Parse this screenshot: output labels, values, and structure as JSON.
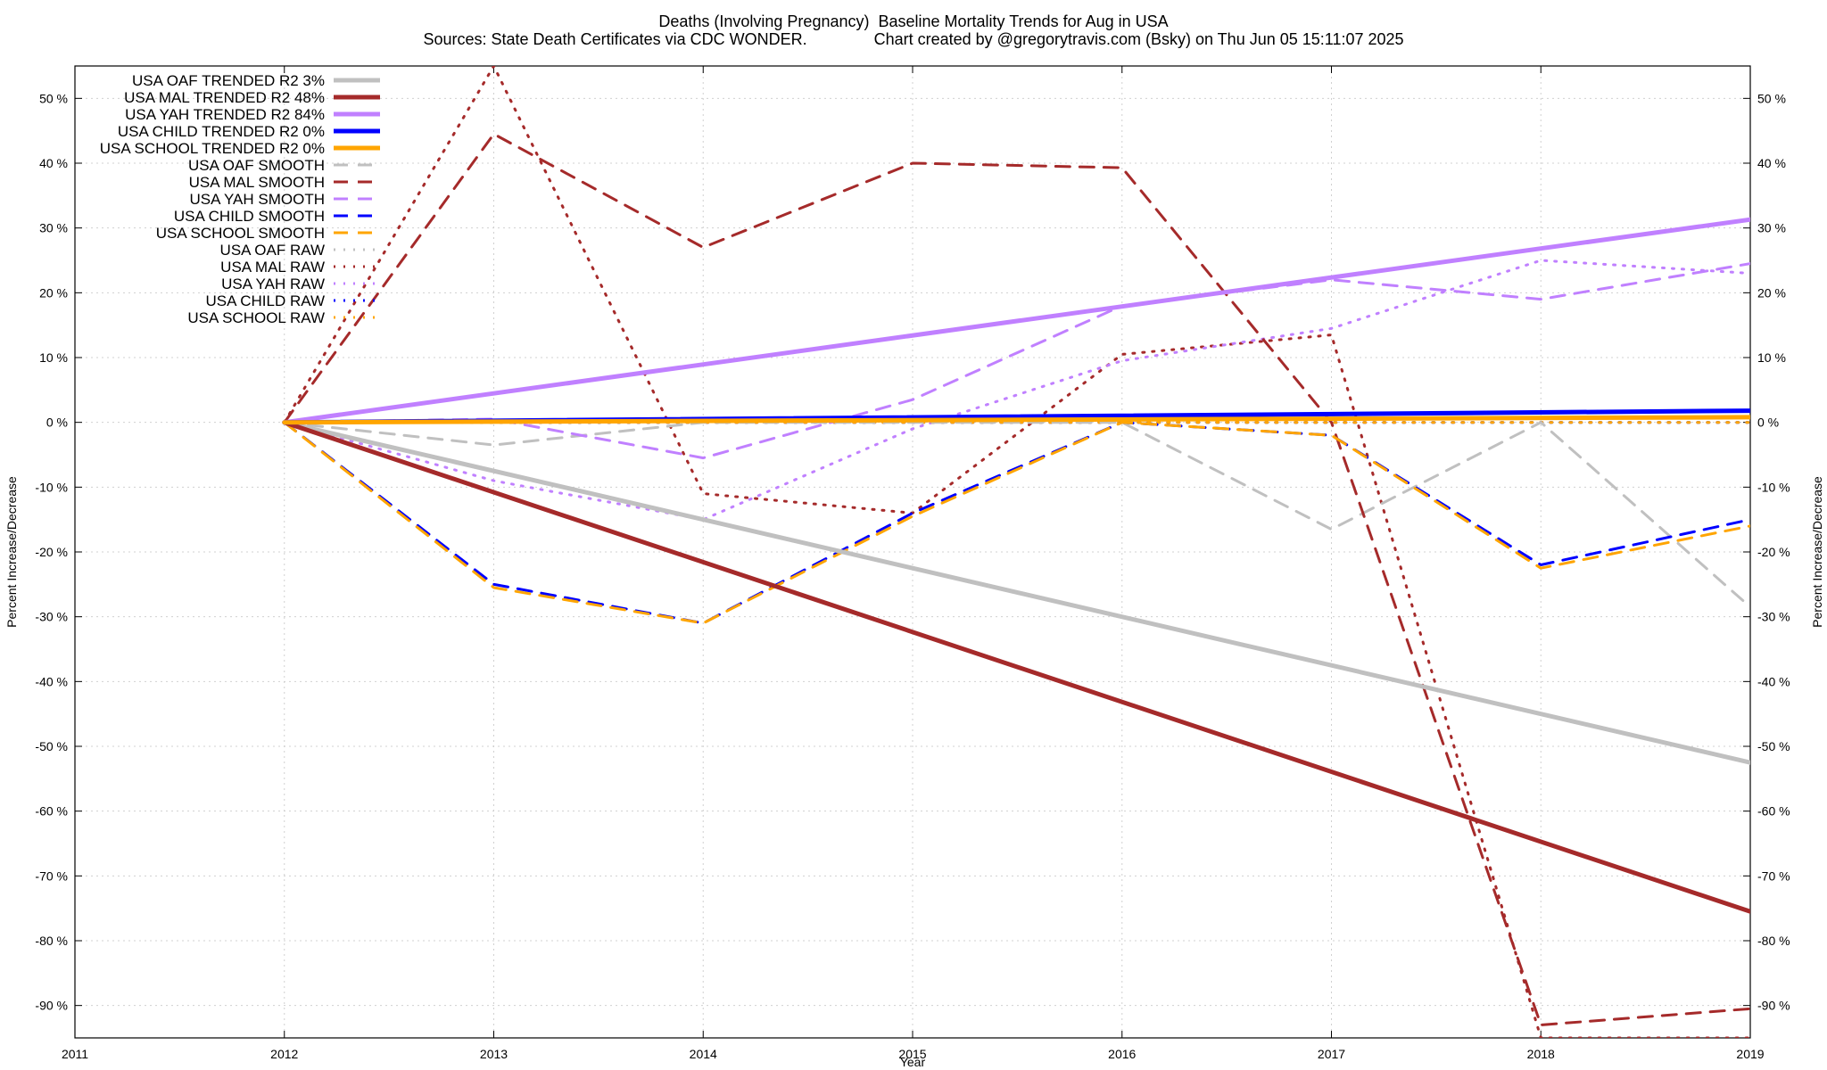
{
  "title": {
    "line1": "Deaths (Involving Pregnancy)  Baseline Mortality Trends for Aug in USA",
    "line2": "Sources: State Death Certificates via CDC WONDER.               Chart created by @gregorytravis.com (Bsky) on Thu Jun 05 15:11:07 2025"
  },
  "chart_data": {
    "type": "line",
    "xlabel": "Year",
    "ylabel": "Percent Increase/Decrease",
    "xlim": [
      2011,
      2019
    ],
    "ylim": [
      -95,
      55
    ],
    "x_ticks": [
      "2011",
      "2012",
      "2013",
      "2014",
      "2015",
      "2016",
      "2017",
      "2018",
      "2019"
    ],
    "y_ticks": [
      "50 %",
      "40 %",
      "30 %",
      "20 %",
      "10 %",
      "0 %",
      "-10 %",
      "-20 %",
      "-30 %",
      "-40 %",
      "-50 %",
      "-60 %",
      "-70 %",
      "-80 %",
      "-90 %"
    ],
    "y_tick_values": [
      50,
      40,
      30,
      20,
      10,
      0,
      -10,
      -20,
      -30,
      -40,
      -50,
      -60,
      -70,
      -80,
      -90
    ],
    "grid": true,
    "legend_position": "top-left",
    "series": [
      {
        "name": "USA OAF TRENDED R2   3%",
        "style": "solid",
        "color": "#c0c0c0",
        "x": [
          2012,
          2019
        ],
        "y": [
          0,
          -52.5
        ]
      },
      {
        "name": "USA MAL TRENDED R2  48%",
        "style": "solid",
        "color": "#a52a2a",
        "x": [
          2012,
          2019
        ],
        "y": [
          0,
          -75.5
        ]
      },
      {
        "name": "USA YAH TRENDED R2  84%",
        "style": "solid",
        "color": "#c080ff",
        "x": [
          2012,
          2019
        ],
        "y": [
          0,
          31.3
        ]
      },
      {
        "name": "USA CHILD TRENDED R2   0%",
        "style": "solid",
        "color": "#0000ff",
        "x": [
          2012,
          2019
        ],
        "y": [
          0,
          1.8
        ]
      },
      {
        "name": "USA SCHOOL TRENDED R2   0%",
        "style": "solid",
        "color": "#ffa500",
        "x": [
          2012,
          2019
        ],
        "y": [
          0,
          0.8
        ]
      },
      {
        "name": "USA OAF SMOOTH",
        "style": "dashed",
        "color": "#c0c0c0",
        "x": [
          2012,
          2013,
          2014,
          2015,
          2016,
          2017,
          2018,
          2019
        ],
        "y": [
          0,
          -3.5,
          0,
          0,
          0,
          -16.5,
          0,
          -28.5
        ]
      },
      {
        "name": "USA MAL SMOOTH",
        "style": "dashed",
        "color": "#a52a2a",
        "x": [
          2012,
          2013,
          2014,
          2015,
          2016,
          2017,
          2018,
          2019
        ],
        "y": [
          0,
          44.5,
          27,
          40,
          39.3,
          0,
          -93,
          -90.5
        ]
      },
      {
        "name": "USA YAH SMOOTH",
        "style": "dashed",
        "color": "#c080ff",
        "x": [
          2012,
          2013,
          2014,
          2015,
          2016,
          2017,
          2018,
          2019
        ],
        "y": [
          0,
          0.5,
          -5.5,
          3.5,
          18,
          22,
          19,
          24.5
        ]
      },
      {
        "name": "USA CHILD SMOOTH",
        "style": "dashed",
        "color": "#0000ff",
        "x": [
          2012,
          2013,
          2014,
          2015,
          2016,
          2017,
          2018,
          2019
        ],
        "y": [
          0,
          -25,
          -31,
          -14,
          0,
          -2,
          -22,
          -15
        ]
      },
      {
        "name": "USA SCHOOL SMOOTH",
        "style": "dashed",
        "color": "#ffa500",
        "x": [
          2012,
          2013,
          2014,
          2015,
          2016,
          2017,
          2018,
          2019
        ],
        "y": [
          0,
          -25.5,
          -31,
          -14.5,
          0,
          -2,
          -22.5,
          -16
        ]
      },
      {
        "name": "USA OAF RAW",
        "style": "dotted",
        "color": "#c0c0c0",
        "x": [
          2012,
          2013,
          2014,
          2015,
          2016,
          2017,
          2018,
          2019
        ],
        "y": [
          0,
          0,
          0,
          0,
          0,
          0,
          0,
          0
        ]
      },
      {
        "name": "USA MAL RAW",
        "style": "dotted",
        "color": "#a52a2a",
        "x": [
          2012,
          2013,
          2014,
          2015,
          2016,
          2017,
          2018,
          2019
        ],
        "y": [
          0,
          55,
          -11,
          -14,
          10.5,
          13.5,
          -95,
          -95
        ]
      },
      {
        "name": "USA YAH RAW",
        "style": "dotted",
        "color": "#c080ff",
        "x": [
          2012,
          2013,
          2014,
          2015,
          2016,
          2017,
          2018,
          2019
        ],
        "y": [
          0,
          -9,
          -15,
          -1,
          9.5,
          14.5,
          25,
          23
        ]
      },
      {
        "name": "USA CHILD RAW",
        "style": "dotted",
        "color": "#0000ff",
        "x": [
          2012,
          2013,
          2014,
          2015,
          2016,
          2017,
          2018,
          2019
        ],
        "y": [
          0,
          0,
          0,
          0,
          0,
          0,
          0,
          0
        ]
      },
      {
        "name": "USA SCHOOL RAW",
        "style": "dotted",
        "color": "#ffa500",
        "x": [
          2012,
          2013,
          2014,
          2015,
          2016,
          2017,
          2018,
          2019
        ],
        "y": [
          0,
          0,
          0,
          0,
          0,
          0,
          0,
          0
        ]
      }
    ]
  }
}
